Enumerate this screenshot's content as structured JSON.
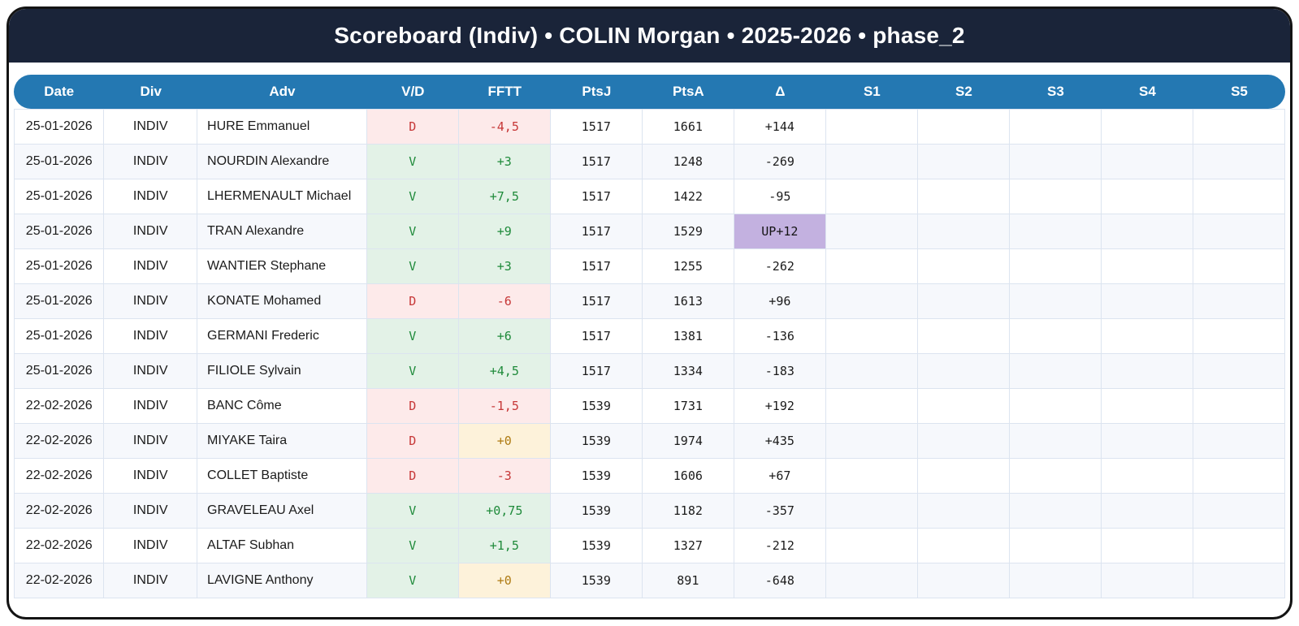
{
  "title": "Scoreboard (Indiv) • COLIN Morgan • 2025-2026 • phase_2",
  "colors": {
    "titlebar_bg": "#1a2439",
    "header_bg": "#2478b2",
    "win_bg": "#e3f2e7",
    "win_text": "#1e8a3a",
    "loss_bg": "#fdeaea",
    "loss_text": "#c63737",
    "zero_bg": "#fdf2da",
    "zero_text": "#ae7a12",
    "up_bg": "#c3b1e0",
    "row_alt_bg": "#f6f8fc",
    "grid_border": "#dce4f0"
  },
  "table": {
    "columns": [
      "Date",
      "Div",
      "Adv",
      "V/D",
      "FFTT",
      "PtsJ",
      "PtsA",
      "Δ",
      "S1",
      "S2",
      "S3",
      "S4",
      "S5"
    ],
    "cell_keys": [
      "date",
      "div",
      "adv",
      "vd",
      "fftt",
      "ptsj",
      "ptsa",
      "delta",
      "s1",
      "s2",
      "s3",
      "s4",
      "s5"
    ],
    "rows": [
      {
        "date": "25-01-2026",
        "div": "INDIV",
        "adv": "HURE Emmanuel",
        "vd": "D",
        "fftt": "-4,5",
        "ptsj": "1517",
        "ptsa": "1661",
        "delta": "+144",
        "s1": "",
        "s2": "",
        "s3": "",
        "s4": "",
        "s5": "",
        "classes": {
          "vd": "loss",
          "fftt": "loss"
        }
      },
      {
        "date": "25-01-2026",
        "div": "INDIV",
        "adv": "NOURDIN Alexandre",
        "vd": "V",
        "fftt": "+3",
        "ptsj": "1517",
        "ptsa": "1248",
        "delta": "-269",
        "s1": "",
        "s2": "",
        "s3": "",
        "s4": "",
        "s5": "",
        "classes": {
          "vd": "win",
          "fftt": "win"
        }
      },
      {
        "date": "25-01-2026",
        "div": "INDIV",
        "adv": "LHERMENAULT Michael",
        "vd": "V",
        "fftt": "+7,5",
        "ptsj": "1517",
        "ptsa": "1422",
        "delta": "-95",
        "s1": "",
        "s2": "",
        "s3": "",
        "s4": "",
        "s5": "",
        "classes": {
          "vd": "win",
          "fftt": "win"
        }
      },
      {
        "date": "25-01-2026",
        "div": "INDIV",
        "adv": "TRAN Alexandre",
        "vd": "V",
        "fftt": "+9",
        "ptsj": "1517",
        "ptsa": "1529",
        "delta": "UP+12",
        "s1": "",
        "s2": "",
        "s3": "",
        "s4": "",
        "s5": "",
        "classes": {
          "vd": "win",
          "fftt": "win",
          "delta": "up"
        }
      },
      {
        "date": "25-01-2026",
        "div": "INDIV",
        "adv": "WANTIER Stephane",
        "vd": "V",
        "fftt": "+3",
        "ptsj": "1517",
        "ptsa": "1255",
        "delta": "-262",
        "s1": "",
        "s2": "",
        "s3": "",
        "s4": "",
        "s5": "",
        "classes": {
          "vd": "win",
          "fftt": "win"
        }
      },
      {
        "date": "25-01-2026",
        "div": "INDIV",
        "adv": "KONATE Mohamed",
        "vd": "D",
        "fftt": "-6",
        "ptsj": "1517",
        "ptsa": "1613",
        "delta": "+96",
        "s1": "",
        "s2": "",
        "s3": "",
        "s4": "",
        "s5": "",
        "classes": {
          "vd": "loss",
          "fftt": "loss"
        }
      },
      {
        "date": "25-01-2026",
        "div": "INDIV",
        "adv": "GERMANI Frederic",
        "vd": "V",
        "fftt": "+6",
        "ptsj": "1517",
        "ptsa": "1381",
        "delta": "-136",
        "s1": "",
        "s2": "",
        "s3": "",
        "s4": "",
        "s5": "",
        "classes": {
          "vd": "win",
          "fftt": "win"
        }
      },
      {
        "date": "25-01-2026",
        "div": "INDIV",
        "adv": "FILIOLE Sylvain",
        "vd": "V",
        "fftt": "+4,5",
        "ptsj": "1517",
        "ptsa": "1334",
        "delta": "-183",
        "s1": "",
        "s2": "",
        "s3": "",
        "s4": "",
        "s5": "",
        "classes": {
          "vd": "win",
          "fftt": "win"
        }
      },
      {
        "date": "22-02-2026",
        "div": "INDIV",
        "adv": "BANC Côme",
        "vd": "D",
        "fftt": "-1,5",
        "ptsj": "1539",
        "ptsa": "1731",
        "delta": "+192",
        "s1": "",
        "s2": "",
        "s3": "",
        "s4": "",
        "s5": "",
        "classes": {
          "vd": "loss",
          "fftt": "loss"
        }
      },
      {
        "date": "22-02-2026",
        "div": "INDIV",
        "adv": "MIYAKE Taira",
        "vd": "D",
        "fftt": "+0",
        "ptsj": "1539",
        "ptsa": "1974",
        "delta": "+435",
        "s1": "",
        "s2": "",
        "s3": "",
        "s4": "",
        "s5": "",
        "classes": {
          "vd": "loss",
          "fftt": "zero"
        }
      },
      {
        "date": "22-02-2026",
        "div": "INDIV",
        "adv": "COLLET Baptiste",
        "vd": "D",
        "fftt": "-3",
        "ptsj": "1539",
        "ptsa": "1606",
        "delta": "+67",
        "s1": "",
        "s2": "",
        "s3": "",
        "s4": "",
        "s5": "",
        "classes": {
          "vd": "loss",
          "fftt": "loss"
        }
      },
      {
        "date": "22-02-2026",
        "div": "INDIV",
        "adv": "GRAVELEAU Axel",
        "vd": "V",
        "fftt": "+0,75",
        "ptsj": "1539",
        "ptsa": "1182",
        "delta": "-357",
        "s1": "",
        "s2": "",
        "s3": "",
        "s4": "",
        "s5": "",
        "classes": {
          "vd": "win",
          "fftt": "win"
        }
      },
      {
        "date": "22-02-2026",
        "div": "INDIV",
        "adv": "ALTAF Subhan",
        "vd": "V",
        "fftt": "+1,5",
        "ptsj": "1539",
        "ptsa": "1327",
        "delta": "-212",
        "s1": "",
        "s2": "",
        "s3": "",
        "s4": "",
        "s5": "",
        "classes": {
          "vd": "win",
          "fftt": "win"
        }
      },
      {
        "date": "22-02-2026",
        "div": "INDIV",
        "adv": "LAVIGNE Anthony",
        "vd": "V",
        "fftt": "+0",
        "ptsj": "1539",
        "ptsa": "891",
        "delta": "-648",
        "s1": "",
        "s2": "",
        "s3": "",
        "s4": "",
        "s5": "",
        "classes": {
          "vd": "win",
          "fftt": "zero"
        }
      }
    ]
  }
}
